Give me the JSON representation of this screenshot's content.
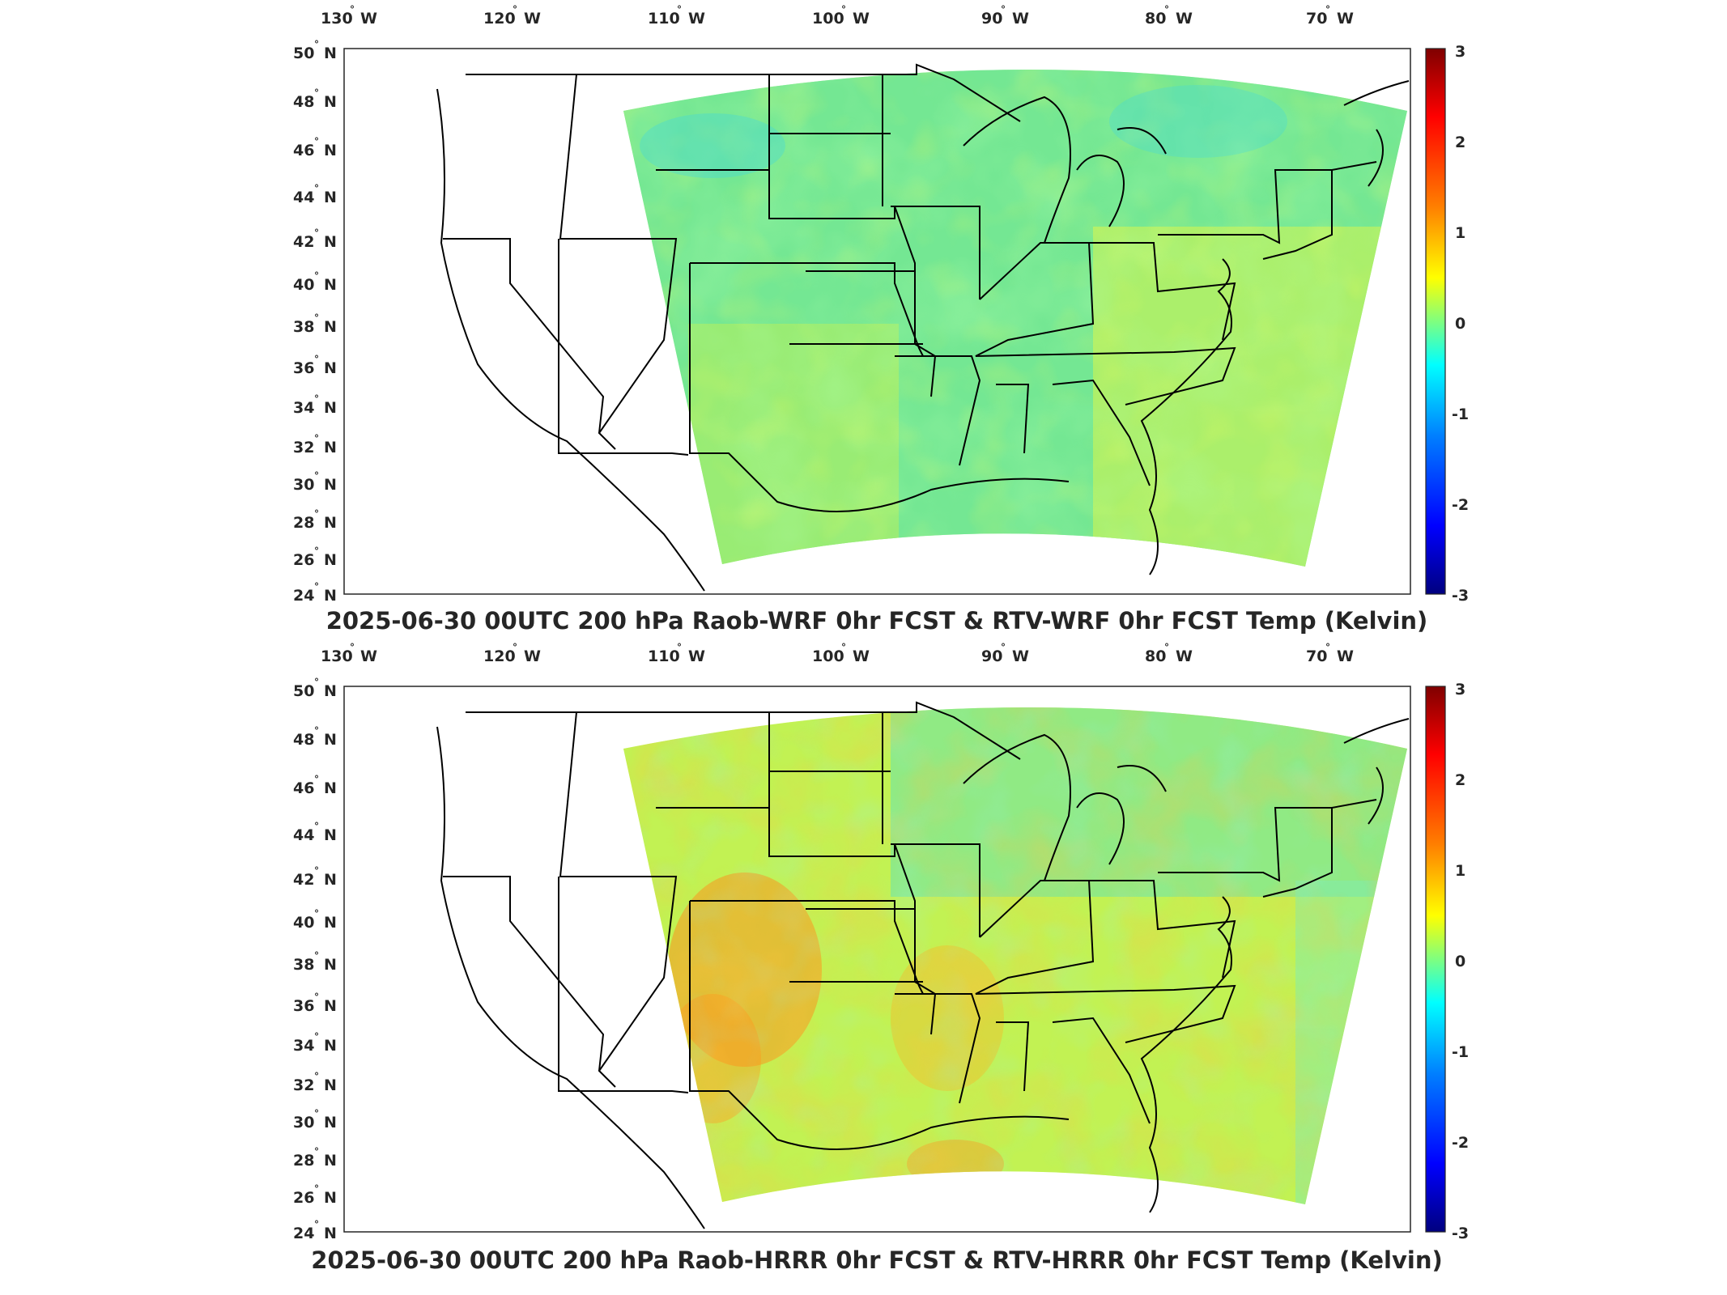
{
  "colorbar": {
    "ticks": [
      "3",
      "2",
      "1",
      "0",
      "-1",
      "-2",
      "-3"
    ],
    "min": -3,
    "max": 3,
    "colors": [
      "#00007f",
      "#0000ff",
      "#007fff",
      "#00ffff",
      "#7fff7f",
      "#ffff00",
      "#ff7f00",
      "#ff0000",
      "#7f0000"
    ]
  },
  "axes": {
    "lon_ticks": [
      {
        "value": "130",
        "hemi": "W"
      },
      {
        "value": "120",
        "hemi": "W"
      },
      {
        "value": "110",
        "hemi": "W"
      },
      {
        "value": "100",
        "hemi": "W"
      },
      {
        "value": "90",
        "hemi": "W"
      },
      {
        "value": "80",
        "hemi": "W"
      },
      {
        "value": "70",
        "hemi": "W"
      }
    ],
    "lat_ticks": [
      {
        "value": "50",
        "hemi": "N"
      },
      {
        "value": "48",
        "hemi": "N"
      },
      {
        "value": "46",
        "hemi": "N"
      },
      {
        "value": "44",
        "hemi": "N"
      },
      {
        "value": "42",
        "hemi": "N"
      },
      {
        "value": "40",
        "hemi": "N"
      },
      {
        "value": "38",
        "hemi": "N"
      },
      {
        "value": "36",
        "hemi": "N"
      },
      {
        "value": "34",
        "hemi": "N"
      },
      {
        "value": "32",
        "hemi": "N"
      },
      {
        "value": "30",
        "hemi": "N"
      },
      {
        "value": "28",
        "hemi": "N"
      },
      {
        "value": "26",
        "hemi": "N"
      },
      {
        "value": "24",
        "hemi": "N"
      }
    ]
  },
  "panels": [
    {
      "title": "2025-06-30 00UTC 200 hPa Raob-WRF 0hr FCST & RTV-WRF 0hr FCST Temp (Kelvin)",
      "field_tone": "cool"
    },
    {
      "title": "2025-06-30 00UTC 200 hPa Raob-HRRR 0hr FCST & RTV-HRRR 0hr FCST Temp (Kelvin)",
      "field_tone": "warm"
    }
  ]
}
